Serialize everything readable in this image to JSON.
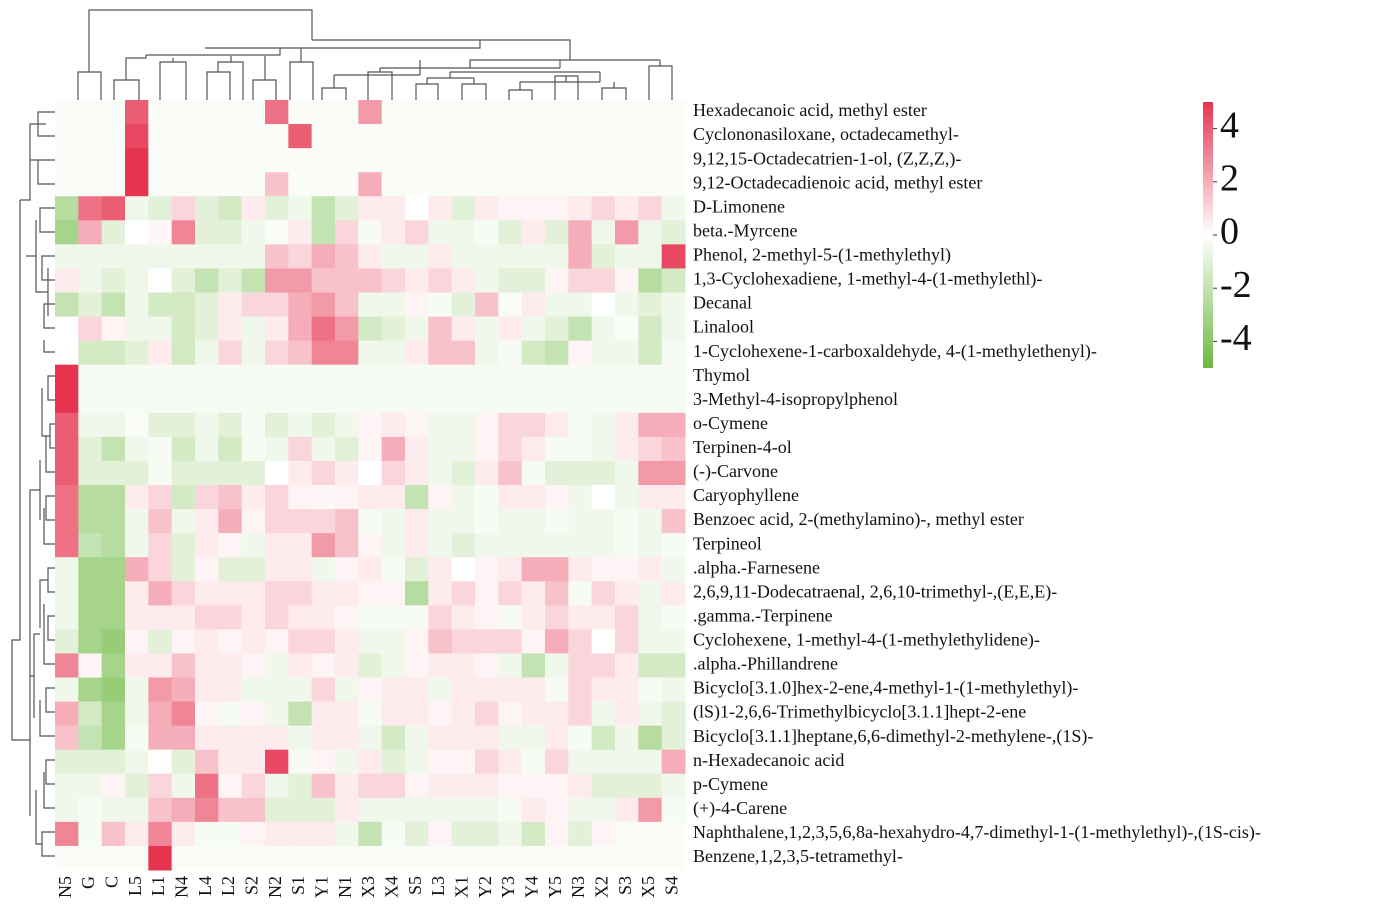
{
  "chart_data": {
    "type": "heatmap",
    "categories": [
      "N5",
      "G",
      "C",
      "L5",
      "L1",
      "N4",
      "L4",
      "L2",
      "S2",
      "N2",
      "S1",
      "Y1",
      "N1",
      "X3",
      "X4",
      "S5",
      "L3",
      "X1",
      "Y2",
      "Y3",
      "Y4",
      "Y5",
      "N3",
      "X2",
      "S3",
      "X5",
      "S4"
    ],
    "rows": [
      "Hexadecanoic acid, methyl ester",
      "Cyclononasiloxane, octadecamethyl-",
      "9,12,15-Octadecatrien-1-ol, (Z,Z,Z,)-",
      "9,12-Octadecadienoic acid, methyl ester",
      "D-Limonene",
      "beta.-Myrcene",
      "Phenol, 2-methyl-5-(1-methylethyl)",
      "1,3-Cyclohexadiene, 1-methyl-4-(1-methylethl)-",
      "Decanal",
      "Linalool",
      "1-Cyclohexene-1-carboxaldehyde, 4-(1-methylethenyl)-",
      "Thymol",
      "3-Methyl-4-isopropylphenol",
      "o-Cymene",
      "Terpinen-4-ol",
      "(-)-Carvone",
      "Caryophyllene",
      "Benzoec acid, 2-(methylamino)-, methyl ester",
      "Terpineol",
      ".alpha.-Farnesene",
      "2,6,9,11-Dodecatraenal, 2,6,10-trimethyl-,(E,E,E)-",
      ".gamma.-Terpinene",
      "Cyclohexene, 1-methyl-4-(1-methylethylidene)-",
      ".alpha.-Phillandrene",
      "Bicyclo[3.1.0]hex-2-ene,4-methyl-1-(1-methylethyl)-",
      "(lS)1-2,6,6-Trimethylbicyclo[3.1.1]hept-2-ene",
      "Bicyclo[3.1.1]heptane,6,6-dimethyl-2-methylene-,(1S)-",
      "n-Hexadecanoic acid",
      "p-Cymene",
      "(+)-4-Carene",
      "Naphthalene,1,2,3,5,6,8a-hexahydro-4,7-dimethyl-1-(1-methylethyl)-,(1S-cis)-",
      "Benzene,1,2,3,5-tetramethyl-"
    ],
    "values": [
      [
        -0.2,
        -0.2,
        -0.2,
        4,
        -0.2,
        -0.2,
        -0.2,
        -0.2,
        -0.2,
        3.5,
        -0.2,
        -0.2,
        -0.2,
        2.5,
        -0.2,
        -0.2,
        -0.2,
        -0.2,
        -0.2,
        -0.2,
        -0.2,
        -0.2,
        -0.2,
        -0.2,
        -0.2,
        -0.2,
        -0.2
      ],
      [
        -0.2,
        -0.2,
        -0.2,
        4.5,
        -0.2,
        -0.2,
        -0.2,
        -0.2,
        -0.2,
        -0.2,
        4,
        -0.2,
        -0.2,
        -0.2,
        -0.2,
        -0.2,
        -0.2,
        -0.2,
        -0.2,
        -0.2,
        -0.2,
        -0.2,
        -0.2,
        -0.2,
        -0.2,
        -0.2,
        -0.2
      ],
      [
        -0.2,
        -0.2,
        -0.2,
        5,
        -0.2,
        -0.2,
        -0.2,
        -0.2,
        -0.2,
        -0.2,
        -0.2,
        -0.2,
        -0.2,
        -0.2,
        -0.2,
        -0.2,
        -0.2,
        -0.2,
        -0.2,
        -0.2,
        -0.2,
        -0.2,
        -0.2,
        -0.2,
        -0.2,
        -0.2,
        -0.2
      ],
      [
        -0.2,
        -0.2,
        -0.2,
        5,
        -0.2,
        -0.2,
        -0.2,
        -0.2,
        -0.2,
        1.5,
        -0.2,
        -0.2,
        -0.2,
        2,
        -0.2,
        -0.2,
        -0.2,
        -0.2,
        -0.2,
        -0.2,
        -0.2,
        -0.2,
        -0.2,
        -0.2,
        -0.2,
        -0.2,
        -0.2
      ],
      [
        -2.5,
        3.5,
        4,
        -0.5,
        -1,
        1,
        -1,
        -1.5,
        0.5,
        -1,
        -0.5,
        -2,
        -1,
        0.5,
        0.5,
        0,
        0.5,
        -1,
        0.5,
        0.3,
        0.3,
        0.3,
        0.5,
        1,
        0.5,
        1,
        -0.5
      ],
      [
        -3,
        2,
        -1,
        0,
        0.2,
        3,
        -1,
        -1,
        -0.5,
        -0.2,
        0.5,
        -2,
        1,
        -0.3,
        0.5,
        1,
        -0.5,
        -0.5,
        -0.3,
        -1,
        0.5,
        -1,
        2,
        -0.5,
        2.5,
        -0.5,
        -1
      ],
      [
        -0.5,
        -0.5,
        -0.5,
        -0.5,
        -0.5,
        -0.5,
        -0.5,
        -0.5,
        -0.5,
        1.5,
        1,
        2,
        1.5,
        0.5,
        -0.5,
        -0.5,
        0.5,
        -0.5,
        -0.5,
        -0.5,
        -0.5,
        -0.5,
        2,
        -1,
        -0.5,
        -0.5,
        4.5
      ],
      [
        0.5,
        -0.5,
        -1,
        -0.5,
        0,
        -1,
        -2,
        -1,
        -2,
        2.5,
        2.5,
        1.5,
        1.5,
        1.5,
        1,
        0.5,
        1,
        0.5,
        -0.5,
        -1,
        -1,
        0.3,
        1,
        1,
        0.3,
        -2.5,
        -1.5
      ],
      [
        -2,
        -1,
        -2,
        -0.5,
        -1.5,
        -1.5,
        -1,
        0.5,
        1,
        1,
        2,
        2.5,
        1.5,
        -0.5,
        -0.5,
        0.3,
        -0.3,
        -1,
        1.5,
        -0.2,
        0.5,
        -0.5,
        -0.5,
        0,
        -0.5,
        -1,
        -0.5
      ],
      [
        0,
        1,
        0.3,
        -0.5,
        -0.5,
        -1.5,
        -1,
        0.5,
        -0.5,
        0.5,
        2,
        3.5,
        2.5,
        -1.5,
        -1,
        -0.5,
        1.5,
        0.5,
        -0.5,
        0.5,
        -0.5,
        -1,
        -2,
        -0.5,
        -0.2,
        -1.5,
        -0.5
      ],
      [
        0,
        -1.5,
        -1.5,
        -1,
        0.5,
        -1.5,
        -0.5,
        1,
        -0.5,
        1,
        1.5,
        3,
        3,
        -0.5,
        -0.5,
        0.5,
        1.5,
        1.5,
        -0.5,
        -0.3,
        -1.5,
        -2,
        0.3,
        -0.5,
        -0.5,
        -1.5,
        -0.3
      ],
      [
        5,
        -0.3,
        -0.3,
        -0.3,
        -0.3,
        -0.3,
        -0.3,
        -0.3,
        -0.3,
        -0.3,
        -0.3,
        -0.3,
        -0.3,
        -0.3,
        -0.3,
        -0.3,
        -0.3,
        -0.3,
        -0.3,
        -0.3,
        -0.3,
        -0.3,
        -0.3,
        -0.3,
        -0.3,
        -0.3,
        -0.3
      ],
      [
        5,
        -0.3,
        -0.3,
        -0.3,
        -0.3,
        -0.3,
        -0.3,
        -0.3,
        -0.3,
        -0.3,
        -0.3,
        -0.3,
        -0.3,
        -0.3,
        -0.3,
        -0.3,
        -0.3,
        -0.3,
        -0.3,
        -0.3,
        -0.3,
        -0.3,
        -0.3,
        -0.3,
        -0.3,
        -0.3,
        -0.3
      ],
      [
        4,
        -0.5,
        -0.5,
        -0.2,
        -1,
        -1,
        -0.5,
        -1,
        -0.3,
        -1,
        -0.5,
        -1,
        -0.5,
        0.3,
        0.5,
        0.3,
        -0.5,
        -0.5,
        0.3,
        1,
        1,
        0.5,
        -0.3,
        -0.5,
        0.5,
        2,
        2
      ],
      [
        4,
        -1,
        -2,
        -0.5,
        -0.3,
        -1.5,
        -0.5,
        -1.5,
        -0.3,
        -0.5,
        1,
        -0.5,
        -1,
        0.3,
        2,
        0.5,
        -0.5,
        -0.5,
        0.3,
        1,
        0.5,
        -0.3,
        -0.3,
        -0.5,
        0.5,
        1,
        1.5
      ],
      [
        4,
        -1,
        -1,
        -1,
        -0.3,
        -1,
        -1,
        -1,
        -1,
        0,
        0.5,
        1,
        0.5,
        0,
        1,
        0.5,
        -0.5,
        -1,
        0.5,
        1.5,
        -0.3,
        -1,
        -1,
        -1,
        -0.5,
        2.5,
        2.5
      ],
      [
        3.5,
        -2.5,
        -2.5,
        0.5,
        1,
        -1.5,
        1,
        1.5,
        0.5,
        1,
        0.3,
        0.2,
        0.3,
        0.5,
        0.5,
        -2,
        0.3,
        -0.5,
        -0.3,
        0.5,
        0.5,
        0.3,
        -0.5,
        0,
        -0.5,
        0.5,
        0.5
      ],
      [
        3.5,
        -2.5,
        -2.5,
        -0.5,
        1.5,
        -0.5,
        0.5,
        2,
        0.3,
        1,
        1,
        1,
        1.5,
        -0.3,
        -0.5,
        0.5,
        -0.5,
        -0.5,
        -0.3,
        -0.5,
        -0.5,
        -0.3,
        -0.5,
        -0.5,
        -0.3,
        -0.5,
        1.5
      ],
      [
        3.5,
        -2,
        -2.5,
        -0.5,
        1,
        -1,
        0.5,
        0.3,
        -0.5,
        0.5,
        0.5,
        2.5,
        1.5,
        0.3,
        -0.5,
        0.5,
        -0.5,
        -1,
        -0.5,
        -0.5,
        -0.5,
        -0.5,
        -0.5,
        -0.5,
        -0.3,
        -0.5,
        -0.3
      ],
      [
        -0.5,
        -3,
        -3,
        2,
        1,
        -1,
        0.3,
        -1,
        -1,
        0.5,
        0.5,
        -0.5,
        0.3,
        0.5,
        -0.3,
        -1,
        0.5,
        0,
        0.3,
        0.5,
        2,
        2,
        0.5,
        0.3,
        0.3,
        0.5,
        -0.5
      ],
      [
        -0.5,
        -3,
        -3,
        0.5,
        2,
        1,
        0.5,
        0.5,
        0.5,
        1,
        1,
        0.5,
        0.5,
        0.3,
        0.3,
        -2.5,
        0.5,
        1,
        0.3,
        1,
        0.5,
        1.5,
        -0.3,
        1,
        0.5,
        -0.5,
        0.5
      ],
      [
        -0.5,
        -3,
        -3,
        0.5,
        0.5,
        0.5,
        1,
        1,
        0.5,
        1,
        0.5,
        0.5,
        0.3,
        -0.3,
        -0.3,
        -0.3,
        1,
        0.5,
        0.3,
        -0.3,
        0.5,
        1,
        0.5,
        0.5,
        1,
        -0.5,
        -0.3
      ],
      [
        -1,
        -3,
        -3.5,
        0.3,
        -1,
        0.3,
        0.5,
        0.3,
        0.5,
        0.3,
        1,
        1,
        0.5,
        -0.5,
        -0.5,
        0.3,
        1.5,
        1,
        1,
        1,
        0.3,
        2,
        1,
        0,
        1,
        -0.5,
        -0.5
      ],
      [
        3,
        0.3,
        -3,
        0.5,
        0.5,
        1.5,
        0.5,
        0.5,
        0.3,
        -0.5,
        0.5,
        0.3,
        0.5,
        -1,
        -0.5,
        0.3,
        0.5,
        0.5,
        0.3,
        -0.5,
        -2,
        -0.5,
        1,
        1,
        0.5,
        -1.5,
        -1.5
      ],
      [
        -0.5,
        -3,
        -3.5,
        -0.5,
        2.5,
        2,
        0.5,
        0.5,
        -0.5,
        -0.5,
        -0.5,
        1,
        -0.5,
        0.3,
        0.5,
        0.5,
        -0.5,
        0.5,
        0.5,
        0.5,
        0.5,
        -0.3,
        1,
        0.5,
        0.5,
        -0.3,
        -0.5
      ],
      [
        2,
        -1.5,
        -3,
        -0.5,
        2,
        3,
        0.3,
        -0.3,
        0.3,
        -0.5,
        -2,
        0.5,
        0.5,
        -0.3,
        0.5,
        0.5,
        0.3,
        0.5,
        1,
        0.3,
        0.5,
        0.5,
        1,
        -0.5,
        0.5,
        -0.5,
        -1
      ],
      [
        1.5,
        -2,
        -3,
        -0.3,
        2,
        2,
        0.5,
        0.5,
        0.5,
        0.5,
        -0.5,
        0.5,
        0.5,
        -0.5,
        -1.5,
        -0.5,
        0.5,
        0.5,
        0.5,
        -0.5,
        -0.5,
        0.5,
        -0.3,
        -1.5,
        -0.5,
        -2.5,
        -1
      ],
      [
        -1,
        -1,
        -1,
        -0.5,
        0,
        -1,
        1.5,
        0.5,
        0.5,
        4.5,
        -0.3,
        0.3,
        -0.5,
        0.5,
        -1,
        -0.5,
        0.3,
        0.3,
        1,
        0.5,
        -0.3,
        1,
        -0.5,
        -0.5,
        -0.5,
        -0.5,
        2
      ],
      [
        -0.5,
        -0.5,
        0.3,
        -1,
        1,
        -0.5,
        3.5,
        0.3,
        1,
        -0.5,
        -1,
        1.5,
        0.5,
        1,
        1,
        0.3,
        0.5,
        0.5,
        0.5,
        0.3,
        0.3,
        0.3,
        0.5,
        -1,
        -1,
        -1,
        -0.5
      ],
      [
        -0.5,
        -0.3,
        -0.5,
        -0.5,
        1.5,
        2,
        3,
        1.5,
        1.5,
        -1,
        -1,
        -1,
        0.5,
        -0.5,
        -0.5,
        -0.5,
        -0.5,
        -0.5,
        -0.5,
        -0.3,
        0.5,
        0.3,
        -0.5,
        -0.5,
        0.5,
        2.5,
        -0.3
      ],
      [
        3,
        -0.3,
        1.5,
        0.5,
        3,
        0.5,
        -0.3,
        -0.3,
        0.3,
        0.5,
        0.5,
        0.5,
        -0.5,
        -2,
        -0.3,
        -1,
        0.3,
        -1,
        -1,
        -0.5,
        -1.5,
        0.3,
        -1,
        0.3,
        -0.2,
        -0.2,
        -0.2
      ],
      [
        -0.2,
        -0.2,
        -0.2,
        -0.2,
        5,
        -0.2,
        -0.2,
        -0.2,
        -0.2,
        -0.2,
        -0.2,
        -0.2,
        -0.2,
        -0.2,
        -0.2,
        -0.2,
        -0.2,
        -0.2,
        -0.2,
        -0.2,
        -0.2,
        -0.2,
        -0.2,
        -0.2,
        -0.2,
        -0.2,
        -0.2
      ]
    ],
    "zlim": [
      -5,
      5
    ],
    "zticks": [
      4,
      2,
      0,
      -2,
      -4
    ],
    "color_scale": [
      "#6cb83e",
      "#ffffff",
      "#e63450"
    ]
  }
}
